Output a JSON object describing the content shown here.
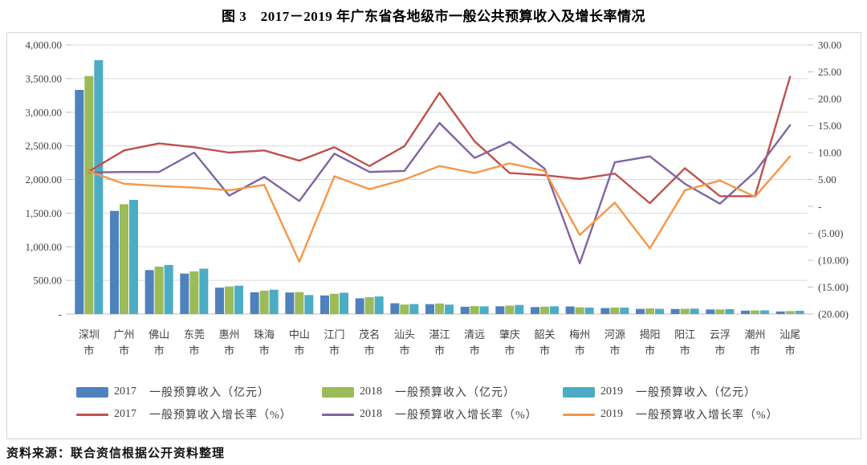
{
  "figure": {
    "title": "图 3　2017－2019 年广东省各地级市一般公共预算收入及增长率情况"
  },
  "source_note": "资料来源：联合资信根据公开资料整理",
  "colors": {
    "bar_2017": "#4F81BD",
    "bar_2018": "#9BBB59",
    "bar_2019": "#4BACC6",
    "line_2017": "#C0504D",
    "line_2018": "#8064A2",
    "line_2019": "#F79646",
    "gridline": "#d9d9d9",
    "axis_line": "#bfbfbf",
    "axis_text": "#3f3f3f"
  },
  "chart_data": {
    "type": "bar+line",
    "grid": true,
    "legend_position": "bottom",
    "categories": [
      "深圳市",
      "广州市",
      "佛山市",
      "东莞市",
      "惠州市",
      "珠海市",
      "中山市",
      "江门市",
      "茂名市",
      "汕头市",
      "湛江市",
      "清远市",
      "肇庆市",
      "韶关市",
      "梅州市",
      "河源市",
      "揭阳市",
      "阳江市",
      "云浮市",
      "潮州市",
      "汕尾市"
    ],
    "left_axis": {
      "min": 0,
      "max": 4000,
      "step": 500,
      "tick_labels": [
        "4,000.00",
        "3,500.00",
        "3,000.00",
        "2,500.00",
        "2,000.00",
        "1,500.00",
        "1,000.00",
        "500.00",
        "-"
      ]
    },
    "right_axis": {
      "min": -20,
      "max": 30,
      "step": 5,
      "tick_labels": [
        "30.00",
        "25.00",
        "20.00",
        "15.00",
        "10.00",
        "5.00",
        "-",
        "(5.00)",
        "(10.00)",
        "(15.00)",
        "(20.00)"
      ]
    },
    "bar_series": [
      {
        "year": "2017",
        "label": "一般预算收入（亿元）",
        "color": "#4F81BD",
        "values": [
          3332,
          1533,
          653,
          601,
          392,
          323,
          320,
          276,
          234,
          160,
          147,
          108,
          115,
          103,
          112,
          88,
          76,
          75,
          68,
          50,
          38
        ]
      },
      {
        "year": "2018",
        "label": "一般预算收入（亿元）",
        "color": "#9BBB59",
        "values": [
          3538,
          1632,
          705,
          634,
          410,
          347,
          326,
          300,
          250,
          141,
          156,
          118,
          125,
          110,
          100,
          95,
          83,
          78,
          68,
          53,
          44
        ]
      },
      {
        "year": "2019",
        "label": "一般预算收入（亿元）",
        "color": "#4BACC6",
        "values": [
          3773,
          1697,
          729,
          674,
          421,
          361,
          282,
          316,
          261,
          148,
          140,
          114,
          135,
          115,
          95,
          95,
          77,
          80,
          72,
          54,
          48
        ]
      }
    ],
    "line_series": [
      {
        "year": "2017",
        "label": "一般预算收入增长率（%）",
        "color": "#C0504D",
        "values": [
          6.5,
          10.4,
          11.7,
          11.0,
          10.0,
          10.4,
          8.5,
          11.0,
          7.5,
          11.2,
          21.1,
          12.1,
          6.2,
          5.8,
          5.1,
          6.1,
          0.6,
          7.1,
          1.9,
          1.9,
          24.1
        ]
      },
      {
        "year": "2018",
        "label": "一般预算收入增长率（%）",
        "color": "#8064A2",
        "values": [
          6.3,
          6.4,
          6.4,
          10.0,
          2.0,
          5.5,
          1.0,
          9.8,
          6.4,
          6.6,
          15.5,
          9.0,
          12.0,
          7.0,
          -10.6,
          8.2,
          9.3,
          4.2,
          0.5,
          6.4,
          15.1
        ]
      },
      {
        "year": "2019",
        "label": "一般预算收入增长率（%）",
        "color": "#F79646",
        "values": [
          6.5,
          4.2,
          3.8,
          3.5,
          3.0,
          4.0,
          -10.3,
          5.6,
          3.2,
          5.0,
          7.5,
          6.2,
          8.0,
          6.6,
          -5.3,
          0.7,
          -7.8,
          3.0,
          4.8,
          1.8,
          9.3
        ]
      }
    ]
  }
}
